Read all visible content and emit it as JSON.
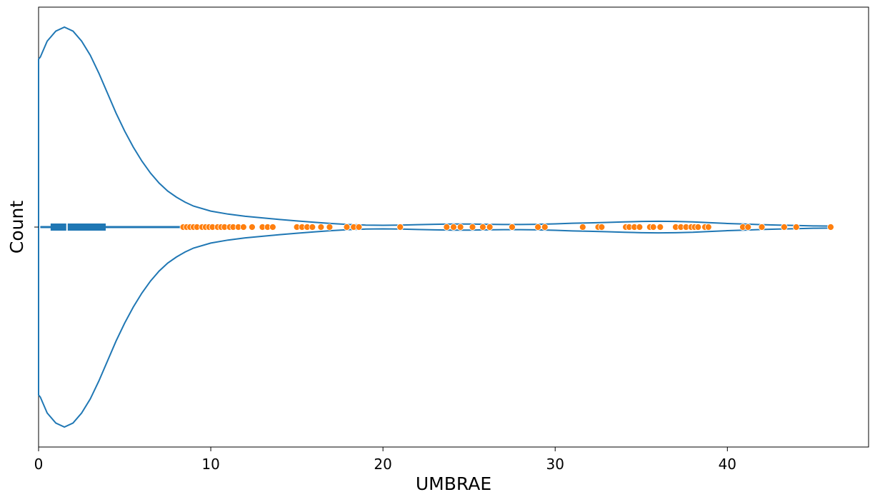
{
  "chart_data": {
    "type": "violin",
    "xlabel": "UMBRAE",
    "ylabel": "Count",
    "xlim": [
      0,
      48.2
    ],
    "xticks": [
      0,
      10,
      20,
      30,
      40
    ],
    "colors": {
      "violin": "#1f77b4",
      "points": "#ff7f0e",
      "point_edge": "#ffffff"
    },
    "box": {
      "q1": 0.7,
      "median": 1.65,
      "q3": 3.9,
      "whisker_low": 0.1,
      "whisker_high": 8.4
    },
    "density_curve": [
      [
        0.0,
        0.84
      ],
      [
        0.1,
        0.85
      ],
      [
        0.5,
        0.93
      ],
      [
        1.0,
        0.98
      ],
      [
        1.5,
        1.0
      ],
      [
        2.0,
        0.98
      ],
      [
        2.5,
        0.93
      ],
      [
        3.0,
        0.86
      ],
      [
        3.5,
        0.77
      ],
      [
        4.0,
        0.67
      ],
      [
        4.5,
        0.57
      ],
      [
        5.0,
        0.48
      ],
      [
        5.5,
        0.4
      ],
      [
        6.0,
        0.33
      ],
      [
        6.5,
        0.27
      ],
      [
        7.0,
        0.22
      ],
      [
        7.5,
        0.18
      ],
      [
        8.0,
        0.15
      ],
      [
        8.5,
        0.125
      ],
      [
        9.0,
        0.105
      ],
      [
        10.0,
        0.08
      ],
      [
        11.0,
        0.065
      ],
      [
        12.0,
        0.054
      ],
      [
        13.0,
        0.046
      ],
      [
        14.0,
        0.038
      ],
      [
        15.0,
        0.031
      ],
      [
        16.0,
        0.024
      ],
      [
        17.0,
        0.018
      ],
      [
        18.0,
        0.013
      ],
      [
        19.0,
        0.01
      ],
      [
        20.0,
        0.009
      ],
      [
        21.0,
        0.01
      ],
      [
        22.0,
        0.012
      ],
      [
        23.0,
        0.014
      ],
      [
        24.0,
        0.015
      ],
      [
        25.0,
        0.015
      ],
      [
        26.0,
        0.014
      ],
      [
        27.0,
        0.013
      ],
      [
        28.0,
        0.013
      ],
      [
        29.0,
        0.014
      ],
      [
        30.0,
        0.016
      ],
      [
        31.0,
        0.019
      ],
      [
        32.0,
        0.021
      ],
      [
        33.0,
        0.023
      ],
      [
        34.0,
        0.026
      ],
      [
        35.0,
        0.028
      ],
      [
        36.0,
        0.029
      ],
      [
        37.0,
        0.028
      ],
      [
        38.0,
        0.026
      ],
      [
        39.0,
        0.022
      ],
      [
        40.0,
        0.018
      ],
      [
        41.0,
        0.015
      ],
      [
        42.0,
        0.012
      ],
      [
        43.0,
        0.01
      ],
      [
        44.0,
        0.008
      ],
      [
        45.0,
        0.006
      ],
      [
        46.0,
        0.005
      ]
    ],
    "outliers": [
      8.4,
      8.6,
      8.8,
      9.0,
      9.2,
      9.5,
      9.7,
      9.9,
      10.1,
      10.4,
      10.6,
      10.8,
      11.1,
      11.3,
      11.6,
      11.9,
      12.4,
      13.0,
      13.3,
      13.6,
      15.0,
      15.3,
      15.6,
      15.9,
      16.4,
      16.9,
      17.9,
      18.3,
      18.6,
      21.0,
      23.7,
      24.1,
      24.5,
      25.2,
      25.8,
      26.2,
      27.5,
      29.0,
      29.4,
      31.6,
      32.5,
      32.7,
      34.1,
      34.3,
      34.6,
      34.9,
      35.5,
      35.7,
      36.1,
      37.0,
      37.3,
      37.6,
      37.9,
      38.1,
      38.3,
      38.7,
      38.9,
      40.9,
      41.2,
      42.0,
      43.3,
      44.0,
      46.0
    ]
  }
}
